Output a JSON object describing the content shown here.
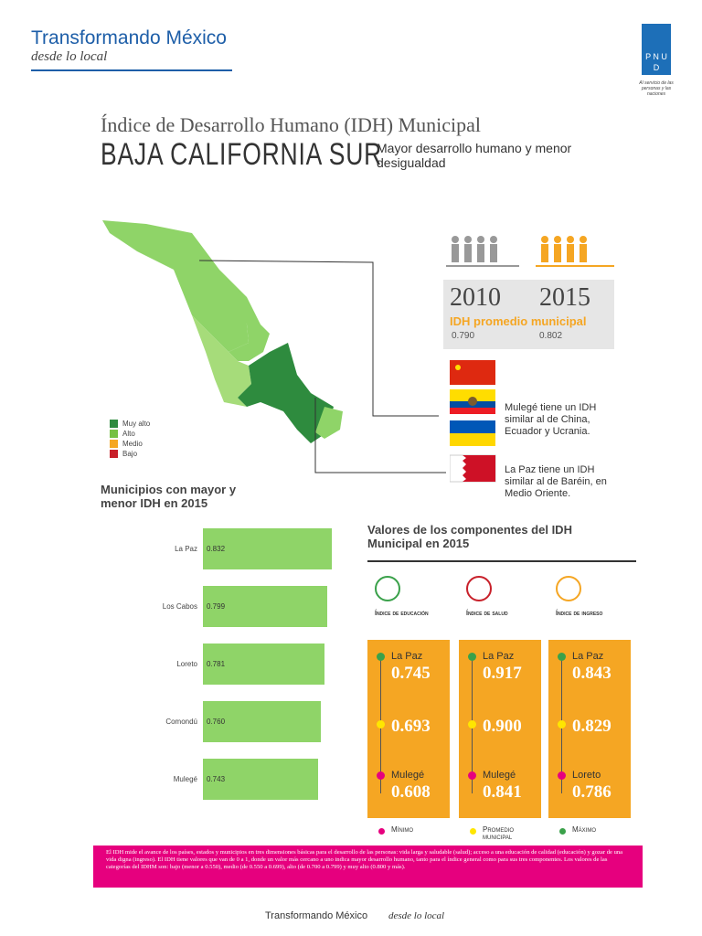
{
  "header": {
    "brand": "Transformando México",
    "tagline": "desde lo local",
    "logo": "P N U D",
    "logo_caption": "Al servicio de las personas y las naciones"
  },
  "title": "Índice de Desarrollo Humano (IDH) Municipal",
  "state": "BAJA CALIFORNIA SUR",
  "subtitle": "Mayor desarrollo humano y menor desigualdad",
  "map_legend": [
    {
      "label": "Muy alto",
      "color": "#2e8b3e"
    },
    {
      "label": "Alto",
      "color": "#76c043"
    },
    {
      "label": "Medio",
      "color": "#f5a623"
    },
    {
      "label": "Bajo",
      "color": "#c8202a"
    }
  ],
  "idh": {
    "years": [
      "2010",
      "2015"
    ],
    "label": "IDH promedio municipal",
    "values": [
      "0.790",
      "0.802"
    ]
  },
  "comparisons": [
    "Mulegé tiene un IDH similar al de China, Ecuador y Ucrania.",
    "La Paz tiene un IDH similar al de Baréin, en Medio Oriente."
  ],
  "chart_data": {
    "type": "bar",
    "orientation": "horizontal",
    "title": "Municipios con mayor y menor IDH en 2015",
    "categories": [
      "La Paz",
      "Los Cabos",
      "Loreto",
      "Comondú",
      "Mulegé"
    ],
    "values": [
      0.832,
      0.799,
      0.781,
      0.76,
      0.743
    ],
    "value_labels": [
      "0.832",
      "0.799",
      "0.781",
      "0.760",
      "0.743"
    ],
    "color": "#8fd468"
  },
  "components": {
    "title": "Valores de los componentes del IDH Municipal en 2015",
    "columns": [
      {
        "name": "Índice de educación",
        "max_label": "La Paz",
        "max": "0.745",
        "avg": "0.693",
        "min_label": "Mulegé",
        "min": "0.608"
      },
      {
        "name": "Índice de salud",
        "max_label": "La Paz",
        "max": "0.917",
        "avg": "0.900",
        "min_label": "Mulegé",
        "min": "0.841"
      },
      {
        "name": "Índice de ingreso",
        "max_label": "La Paz",
        "max": "0.843",
        "avg": "0.829",
        "min_label": "Loreto",
        "min": "0.786"
      }
    ],
    "legend": [
      {
        "label": "Mínimo",
        "color": "#e6007e"
      },
      {
        "label": "Promedio municipal",
        "color": "#ffe600"
      },
      {
        "label": "Máximo",
        "color": "#3aa14a"
      }
    ]
  },
  "note": "El IDH mide el avance de los países, estados y municipios en tres dimensiones básicas para el desarrollo de las personas: vida larga y saludable (salud); acceso a una educación de calidad (educación) y gozar de una vida digna (ingreso). El IDH tiene valores que van de 0 a 1, donde un valor más cercano a uno indica mayor desarrollo humano, tanto para el índice general como para sus tres componentes. Los valores de las categorías del IDHM son: bajo (menor a 0.550), medio (de 0.550 a 0.699), alto (de 0.700 a 0.799) y muy alto (0.800 y más).",
  "footer": {
    "brand": "Transformando México",
    "tagline": "desde lo local"
  }
}
